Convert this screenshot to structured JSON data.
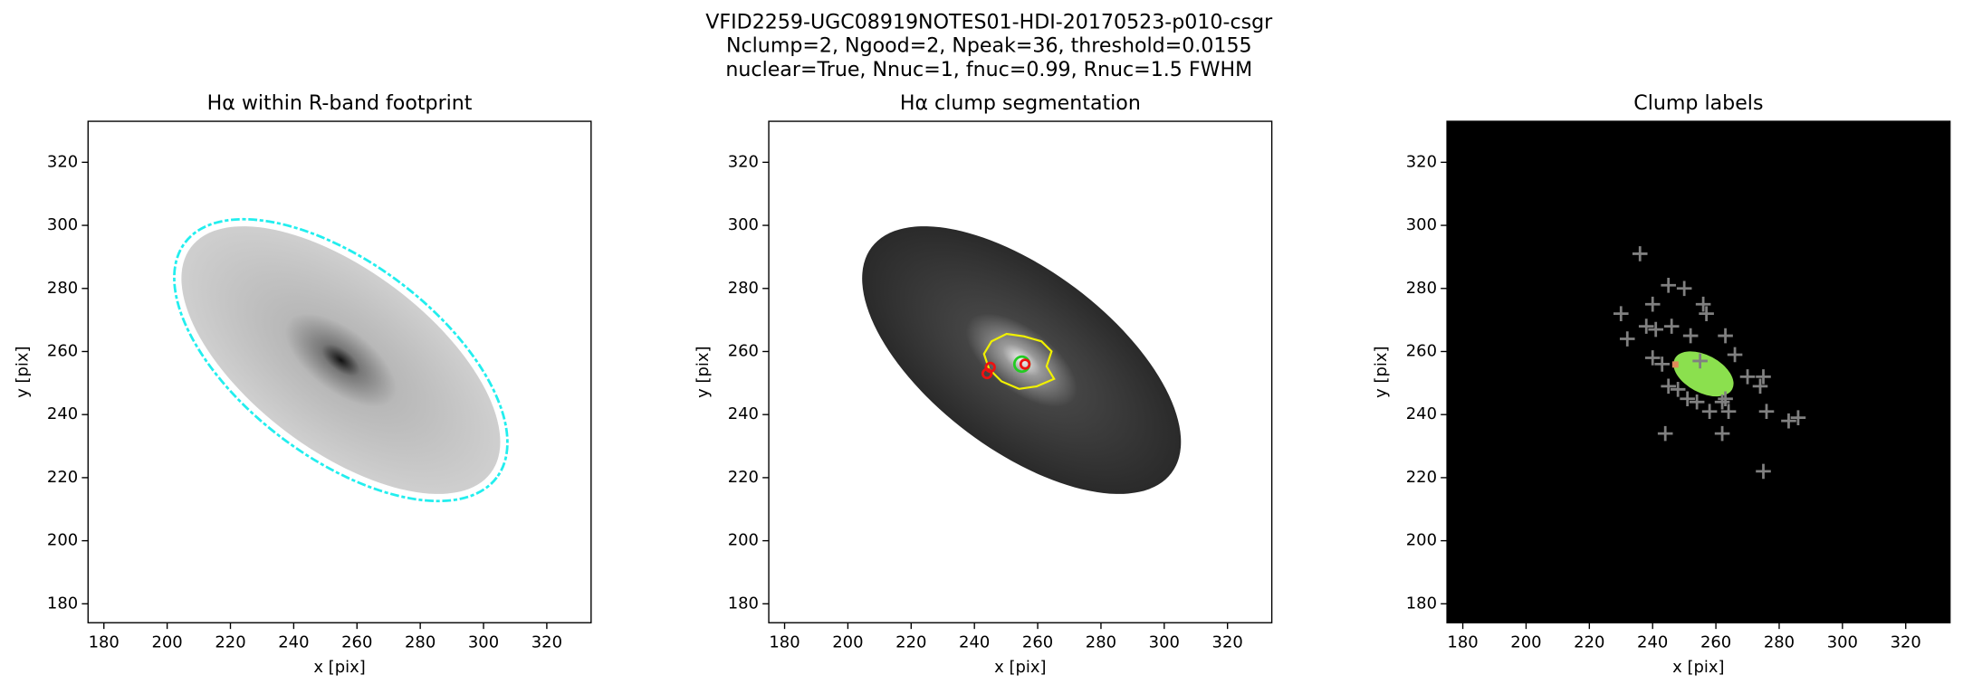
{
  "title": [
    "VFID2259-UGC08919NOTES01-HDI-20170523-p010-csgr",
    "Nclump=2, Ngood=2, Npeak=36, threshold=0.0155",
    "nuclear=True, Nnuc=1, fnuc=0.99, Rnuc=1.5 FWHM"
  ],
  "chart_data": [
    {
      "type": "image",
      "title": "Hα within R-band footprint",
      "xlabel": "x [pix]",
      "ylabel": "y [pix]",
      "xlim": [
        175,
        334
      ],
      "ylim": [
        174,
        333
      ],
      "xticks": [
        180,
        200,
        220,
        240,
        260,
        280,
        300,
        320
      ],
      "yticks": [
        180,
        200,
        220,
        240,
        260,
        280,
        300,
        320
      ],
      "series": []
    },
    {
      "type": "image",
      "title": "Hα clump segmentation",
      "xlabel": "x [pix]",
      "ylabel": "y [pix]",
      "xlim": [
        175,
        334
      ],
      "ylim": [
        174,
        333
      ],
      "xticks": [
        180,
        200,
        220,
        240,
        260,
        280,
        300,
        320
      ],
      "yticks": [
        180,
        200,
        220,
        240,
        260,
        280,
        300,
        320
      ],
      "series": [
        {
          "color": "#22cc22",
          "marker": "o",
          "marker_size": 6,
          "x": [
            255
          ],
          "y": [
            256
          ]
        },
        {
          "color": "#ee1111",
          "marker": "o",
          "marker_size": 3.5,
          "x": [
            256,
            245,
            244
          ],
          "y": [
            256,
            255,
            253
          ]
        }
      ]
    },
    {
      "type": "image",
      "title": "Clump labels",
      "xlabel": "x [pix]",
      "ylabel": "y [pix]",
      "xlim": [
        175,
        334
      ],
      "ylim": [
        174,
        333
      ],
      "xticks": [
        180,
        200,
        220,
        240,
        260,
        280,
        300,
        320
      ],
      "yticks": [
        180,
        200,
        220,
        240,
        260,
        280,
        300,
        320
      ],
      "series": [
        {
          "color": "#808080",
          "marker": "+",
          "marker_size": 6,
          "x": [
            236,
            245,
            250,
            230,
            240,
            256,
            257,
            238,
            241,
            246,
            232,
            240,
            243,
            252,
            263,
            266,
            270,
            275,
            274,
            255,
            245,
            251,
            254,
            258,
            263,
            264,
            276,
            283,
            286,
            244,
            262,
            275,
            248,
            262
          ],
          "y": [
            291,
            281,
            280,
            272,
            275,
            275,
            272,
            268,
            267,
            268,
            264,
            258,
            256,
            265,
            265,
            259,
            252,
            252,
            249,
            257,
            249,
            245,
            244,
            241,
            245,
            241,
            241,
            238,
            239,
            234,
            234,
            222,
            248,
            244
          ]
        }
      ]
    }
  ]
}
